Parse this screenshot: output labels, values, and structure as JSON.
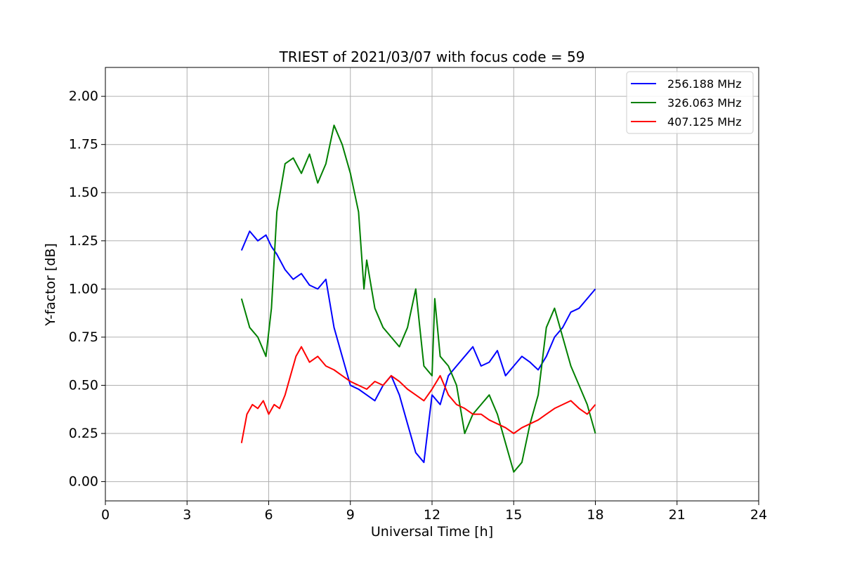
{
  "chart_data": {
    "type": "line",
    "title": "TRIEST of 2021/03/07 with focus code = 59",
    "xlabel": "Universal Time [h]",
    "ylabel": "Y-factor [dB]",
    "xlim": [
      0,
      24
    ],
    "ylim": [
      -0.1,
      2.15
    ],
    "xticks": [
      0,
      3,
      6,
      9,
      12,
      15,
      18,
      21,
      24
    ],
    "yticks": [
      0.0,
      0.25,
      0.5,
      0.75,
      1.0,
      1.25,
      1.5,
      1.75,
      2.0
    ],
    "xtick_labels": [
      "0",
      "3",
      "6",
      "9",
      "12",
      "15",
      "18",
      "21",
      "24"
    ],
    "ytick_labels": [
      "0.00",
      "0.25",
      "0.50",
      "0.75",
      "1.00",
      "1.25",
      "1.50",
      "1.75",
      "2.00"
    ],
    "grid": true,
    "legend_position": "top-right",
    "series": [
      {
        "name": "256.188 MHz",
        "color": "#0000ff",
        "x": [
          5.0,
          5.3,
          5.6,
          5.9,
          6.1,
          6.3,
          6.6,
          6.9,
          7.2,
          7.5,
          7.8,
          8.1,
          8.4,
          8.7,
          9.0,
          9.3,
          9.6,
          9.9,
          10.2,
          10.5,
          10.8,
          11.1,
          11.4,
          11.7,
          12.0,
          12.3,
          12.6,
          12.9,
          13.2,
          13.5,
          13.8,
          14.1,
          14.4,
          14.7,
          15.0,
          15.3,
          15.6,
          15.9,
          16.2,
          16.5,
          16.8,
          17.1,
          17.4,
          17.7,
          18.0
        ],
        "y": [
          1.2,
          1.3,
          1.25,
          1.28,
          1.22,
          1.18,
          1.1,
          1.05,
          1.08,
          1.02,
          1.0,
          1.05,
          0.8,
          0.65,
          0.5,
          0.48,
          0.45,
          0.42,
          0.5,
          0.55,
          0.45,
          0.3,
          0.15,
          0.1,
          0.45,
          0.4,
          0.55,
          0.6,
          0.65,
          0.7,
          0.6,
          0.62,
          0.68,
          0.55,
          0.6,
          0.65,
          0.62,
          0.58,
          0.65,
          0.75,
          0.8,
          0.88,
          0.9,
          0.95,
          1.0
        ]
      },
      {
        "name": "326.063 MHz",
        "color": "#008000",
        "x": [
          5.0,
          5.3,
          5.6,
          5.9,
          6.1,
          6.3,
          6.6,
          6.9,
          7.2,
          7.5,
          7.8,
          8.1,
          8.4,
          8.7,
          9.0,
          9.3,
          9.5,
          9.6,
          9.9,
          10.2,
          10.5,
          10.8,
          11.1,
          11.4,
          11.7,
          12.0,
          12.1,
          12.3,
          12.6,
          12.9,
          13.2,
          13.5,
          13.8,
          14.1,
          14.4,
          14.7,
          15.0,
          15.3,
          15.6,
          15.9,
          16.2,
          16.5,
          16.8,
          17.1,
          17.4,
          17.7,
          18.0
        ],
        "y": [
          0.95,
          0.8,
          0.75,
          0.65,
          0.9,
          1.4,
          1.65,
          1.68,
          1.6,
          1.7,
          1.55,
          1.65,
          1.85,
          1.75,
          1.6,
          1.4,
          1.0,
          1.15,
          0.9,
          0.8,
          0.75,
          0.7,
          0.8,
          1.0,
          0.6,
          0.55,
          0.95,
          0.65,
          0.6,
          0.5,
          0.25,
          0.35,
          0.4,
          0.45,
          0.35,
          0.2,
          0.05,
          0.1,
          0.3,
          0.45,
          0.8,
          0.9,
          0.75,
          0.6,
          0.5,
          0.4,
          0.25
        ]
      },
      {
        "name": "407.125 MHz",
        "color": "#ff0000",
        "x": [
          5.0,
          5.2,
          5.4,
          5.6,
          5.8,
          6.0,
          6.2,
          6.4,
          6.6,
          6.8,
          7.0,
          7.2,
          7.5,
          7.8,
          8.1,
          8.4,
          8.7,
          9.0,
          9.3,
          9.6,
          9.9,
          10.2,
          10.5,
          10.8,
          11.1,
          11.4,
          11.7,
          12.0,
          12.3,
          12.6,
          12.9,
          13.2,
          13.5,
          13.8,
          14.1,
          14.4,
          14.7,
          15.0,
          15.3,
          15.6,
          15.9,
          16.2,
          16.5,
          16.8,
          17.1,
          17.4,
          17.7,
          18.0
        ],
        "y": [
          0.2,
          0.35,
          0.4,
          0.38,
          0.42,
          0.35,
          0.4,
          0.38,
          0.45,
          0.55,
          0.65,
          0.7,
          0.62,
          0.65,
          0.6,
          0.58,
          0.55,
          0.52,
          0.5,
          0.48,
          0.52,
          0.5,
          0.55,
          0.52,
          0.48,
          0.45,
          0.42,
          0.48,
          0.55,
          0.45,
          0.4,
          0.38,
          0.35,
          0.35,
          0.32,
          0.3,
          0.28,
          0.25,
          0.28,
          0.3,
          0.32,
          0.35,
          0.38,
          0.4,
          0.42,
          0.38,
          0.35,
          0.4
        ]
      }
    ]
  }
}
